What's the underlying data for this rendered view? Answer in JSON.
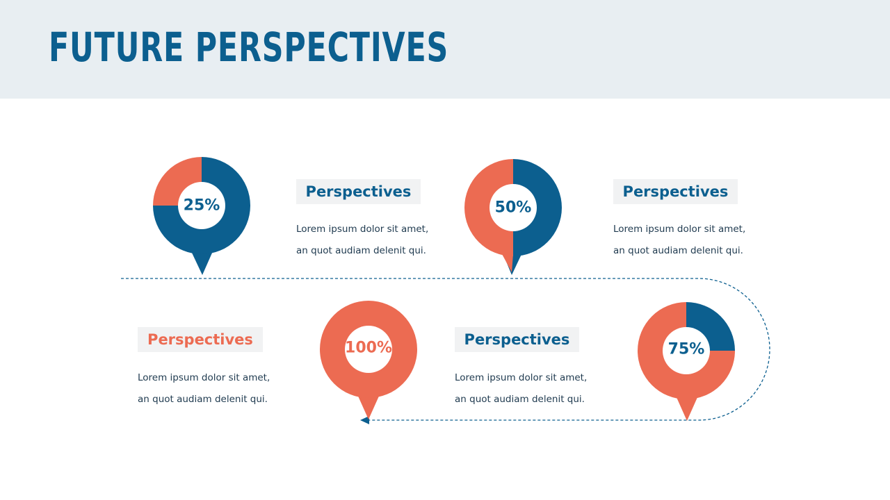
{
  "title": "FUTURE PERSPECTIVES",
  "colors": {
    "blue": "#0c5f8f",
    "coral": "#ec6b52",
    "header_bg": "#e8eef2",
    "label_bg": "#f1f2f3"
  },
  "steps": [
    {
      "percent": "25%",
      "value": 25,
      "heading": "Perspectives",
      "line1": "Lorem ipsum dolor sit amet,",
      "line2": "an quot audiam delenit qui."
    },
    {
      "percent": "50%",
      "value": 50,
      "heading": "Perspectives",
      "line1": "Lorem ipsum dolor sit amet,",
      "line2": "an quot audiam delenit qui."
    },
    {
      "percent": "75%",
      "value": 75,
      "heading": "Perspectives",
      "line1": "Lorem ipsum dolor sit amet,",
      "line2": "an quot audiam delenit qui."
    },
    {
      "percent": "100%",
      "value": 100,
      "heading": "Perspectives",
      "line1": "Lorem ipsum dolor sit amet,",
      "line2": "an quot audiam delenit qui."
    }
  ]
}
